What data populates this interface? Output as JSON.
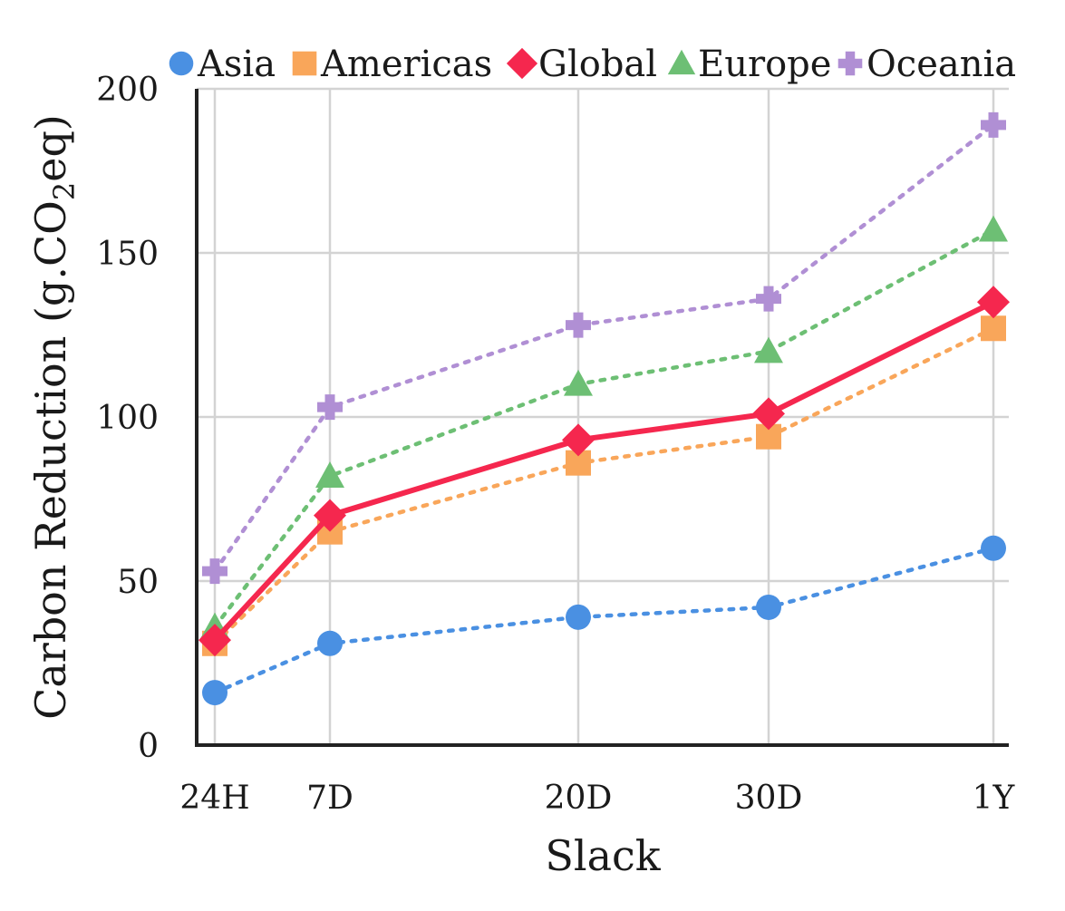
{
  "chart_data": {
    "type": "line",
    "x": [
      "24H",
      "7D",
      "20D",
      "30D",
      "1Y"
    ],
    "xlabel": "Slack",
    "ylabel_main": "Carbon Reduction (g.CO",
    "ylabel_sub": "2",
    "ylabel_tail": "eq)",
    "ylim": [
      0,
      200
    ],
    "yticks": [
      "0",
      "50",
      "100",
      "150",
      "200"
    ],
    "grid": true,
    "legend_position": "top",
    "series": [
      {
        "name": "Asia",
        "values": [
          16,
          31,
          39,
          42,
          60
        ],
        "color": "#4a90e2",
        "marker": "circle",
        "line": "dotted"
      },
      {
        "name": "Americas",
        "values": [
          31,
          65,
          86,
          94,
          127
        ],
        "color": "#f9a65a",
        "marker": "square",
        "line": "dotted"
      },
      {
        "name": "Global",
        "values": [
          32,
          70,
          93,
          101,
          135
        ],
        "color": "#f5274e",
        "marker": "diamond",
        "line": "solid"
      },
      {
        "name": "Europe",
        "values": [
          36,
          82,
          110,
          120,
          157
        ],
        "color": "#6dbf74",
        "marker": "triangle",
        "line": "dotted"
      },
      {
        "name": "Oceania",
        "values": [
          53,
          103,
          128,
          136,
          189
        ],
        "color": "#b08fd4",
        "marker": "plus",
        "line": "dotted"
      }
    ]
  }
}
